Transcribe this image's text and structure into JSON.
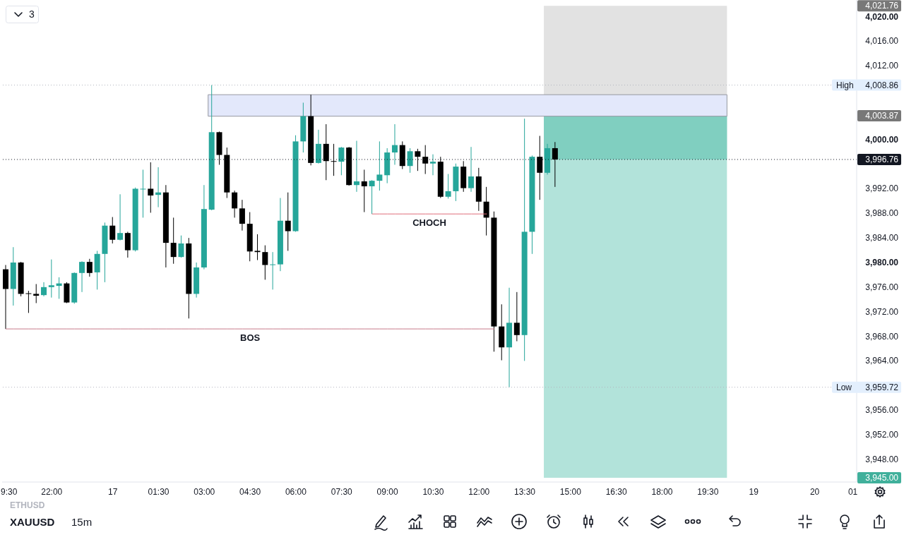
{
  "chart_data": {
    "type": "candlestick",
    "title": "XAUUSD",
    "subtitle": "15m",
    "categories": [
      "9:30",
      null,
      null,
      null,
      null,
      null,
      "22:00",
      null,
      null,
      null,
      null,
      null,
      null,
      null,
      "17",
      null,
      null,
      null,
      null,
      null,
      "01:30",
      null,
      null,
      null,
      null,
      null,
      "03:00",
      null,
      null,
      null,
      null,
      null,
      "04:30",
      null,
      null,
      null,
      null,
      null,
      "06:00",
      null,
      null,
      null,
      null,
      null,
      "07:30",
      null,
      null,
      null,
      null,
      null,
      "09:00",
      null,
      null,
      null,
      null,
      null,
      "10:30",
      null,
      null,
      null,
      null,
      null,
      "12:00",
      null,
      null,
      null,
      null,
      null,
      "13:30",
      null,
      null,
      null,
      null,
      null,
      "15:00",
      null,
      null,
      null,
      null,
      null,
      "16:30",
      null,
      null,
      null,
      null,
      null,
      "18:00",
      null,
      null,
      null,
      null,
      null,
      "19:30",
      null,
      null,
      null,
      null,
      null,
      "19",
      null,
      null,
      null,
      null,
      null,
      null,
      null,
      "20",
      null,
      null,
      null,
      null,
      "01"
    ],
    "ohlc": [
      [
        3978.9,
        3979.6,
        3969.2,
        3975.7
      ],
      [
        3975.7,
        3982.5,
        3973.0,
        3980.0
      ],
      [
        3980.0,
        3980.1,
        3974.5,
        3974.9
      ],
      [
        3975.0,
        3975.4,
        3971.8,
        3974.9
      ],
      [
        3974.9,
        3976.5,
        3973.4,
        3974.6
      ],
      [
        3974.7,
        3976.8,
        3974.5,
        3976.0
      ],
      [
        3976.0,
        3980.5,
        3974.3,
        3976.3
      ],
      [
        3976.2,
        3977.6,
        3974.1,
        3976.6
      ],
      [
        3976.6,
        3976.8,
        3973.4,
        3973.5
      ],
      [
        3973.5,
        3978.4,
        3973.3,
        3978.3
      ],
      [
        3978.3,
        3980.2,
        3975.2,
        3980.1
      ],
      [
        3980.1,
        3980.6,
        3977.7,
        3978.3
      ],
      [
        3978.4,
        3981.9,
        3975.6,
        3981.4
      ],
      [
        3981.4,
        3986.5,
        3976.8,
        3986.0
      ],
      [
        3986.0,
        3987.4,
        3983.1,
        3983.7
      ],
      [
        3983.7,
        3991.1,
        3983.6,
        3984.8
      ],
      [
        3984.8,
        3985.0,
        3980.8,
        3982.0
      ],
      [
        3982.0,
        3992.2,
        3981.8,
        3992.0
      ],
      [
        3991.9,
        3995.1,
        3987.3,
        3992.0
      ],
      [
        3992.0,
        3996.3,
        3988.1,
        3990.9
      ],
      [
        3991.0,
        3995.5,
        3989.0,
        3991.4
      ],
      [
        3991.4,
        3992.6,
        3979.2,
        3983.2
      ],
      [
        3983.2,
        3987.3,
        3979.8,
        3980.9
      ],
      [
        3980.9,
        3984.4,
        3980.8,
        3983.1
      ],
      [
        3983.1,
        3984.0,
        3970.9,
        3974.9
      ],
      [
        3974.9,
        3980.0,
        3974.3,
        3979.2
      ],
      [
        3979.2,
        3992.6,
        3978.9,
        3988.7
      ],
      [
        3988.6,
        4008.86,
        3988.5,
        4001.2
      ],
      [
        4001.2,
        4001.3,
        3995.9,
        3997.5
      ],
      [
        3997.5,
        3998.7,
        3990.5,
        3991.4
      ],
      [
        3991.4,
        3991.7,
        3987.3,
        3988.8
      ],
      [
        3988.8,
        3990.2,
        3985.2,
        3986.3
      ],
      [
        3986.3,
        3988.2,
        3980.2,
        3981.8
      ],
      [
        3981.9,
        3984.6,
        3980.4,
        3981.7
      ],
      [
        3981.7,
        3982.8,
        3977.2,
        3979.6
      ],
      [
        3979.6,
        3981.7,
        3975.6,
        3979.7
      ],
      [
        3979.7,
        3990.5,
        3978.6,
        3986.8
      ],
      [
        3986.8,
        3991.4,
        3981.9,
        3985.1
      ],
      [
        3985.1,
        4000.7,
        3985.0,
        3999.7
      ],
      [
        3999.7,
        4006.0,
        3997.9,
        4003.8
      ],
      [
        4003.8,
        4007.3,
        3995.8,
        3996.2
      ],
      [
        3996.2,
        4001.6,
        3996.1,
        3999.3
      ],
      [
        3999.3,
        4002.5,
        3993.4,
        3996.5
      ],
      [
        3996.5,
        3999.3,
        3994.1,
        3996.4
      ],
      [
        3996.4,
        3998.8,
        3994.2,
        3998.7
      ],
      [
        3998.7,
        3998.8,
        3992.5,
        3992.6
      ],
      [
        3992.6,
        3999.8,
        3991.5,
        3993.2
      ],
      [
        3993.2,
        3995.1,
        3988.2,
        3992.4
      ],
      [
        3992.4,
        3993.4,
        3987.9,
        3993.3
      ],
      [
        3993.3,
        3999.7,
        3991.7,
        3994.3
      ],
      [
        3994.2,
        3998.6,
        3992.9,
        3997.9
      ],
      [
        3997.9,
        4002.5,
        3995.9,
        3999.1
      ],
      [
        3999.1,
        3999.7,
        3995.2,
        3995.7
      ],
      [
        3995.7,
        3998.6,
        3994.6,
        3998.1
      ],
      [
        3998.1,
        3998.5,
        3994.9,
        3997.2
      ],
      [
        3997.2,
        3999.1,
        3994.4,
        3996.1
      ],
      [
        3996.1,
        3997.6,
        3994.2,
        3996.4
      ],
      [
        3996.4,
        3997.2,
        3990.5,
        3990.7
      ],
      [
        3990.7,
        3994.4,
        3990.4,
        3991.6
      ],
      [
        3991.6,
        3996.1,
        3990.0,
        3995.6
      ],
      [
        3995.6,
        3996.5,
        3991.5,
        3992.1
      ],
      [
        3992.1,
        3998.8,
        3991.5,
        3994.0
      ],
      [
        3994.0,
        3995.4,
        3988.4,
        3989.9
      ],
      [
        3989.9,
        3992.3,
        3984.4,
        3987.3
      ],
      [
        3987.3,
        3988.3,
        3965.5,
        3969.6
      ],
      [
        3969.6,
        3973.2,
        3964.1,
        3966.2
      ],
      [
        3966.2,
        3975.9,
        3959.72,
        3970.2
      ],
      [
        3970.2,
        3975.2,
        3967.2,
        3968.2
      ],
      [
        3968.2,
        4003.4,
        3964.0,
        3985.0
      ],
      [
        3985.0,
        3997.4,
        3981.4,
        3997.2
      ],
      [
        3997.2,
        4000.6,
        3990.2,
        3994.6
      ],
      [
        3994.6,
        3999.3,
        3994.3,
        3998.6
      ],
      [
        3998.6,
        3999.6,
        3992.3,
        3996.76
      ],
      null,
      null,
      null,
      null,
      null,
      null,
      null,
      null,
      null,
      null,
      null,
      null,
      null,
      null,
      null,
      null,
      null,
      null,
      null,
      null,
      null,
      null,
      null,
      null,
      null,
      null,
      null,
      null,
      null,
      null,
      null,
      null,
      null,
      null,
      null,
      null,
      null,
      null,
      null
    ],
    "colors": [
      "#000000",
      "#26a69a",
      "#000000",
      "#000000",
      "#000000",
      "#26a69a",
      "#26a69a",
      "#26a69a",
      "#000000",
      "#26a69a",
      "#26a69a",
      "#000000",
      "#26a69a",
      "#26a69a",
      "#000000",
      "#26a69a",
      "#000000",
      "#26a69a",
      "#26a69a",
      "#000000",
      "#26a69a",
      "#000000",
      "#000000",
      "#26a69a",
      "#000000",
      "#26a69a",
      "#26a69a",
      "#26a69a",
      "#000000",
      "#000000",
      "#000000",
      "#000000",
      "#000000",
      "#000000",
      "#000000",
      "#26a69a",
      "#26a69a",
      "#000000",
      "#26a69a",
      "#26a69a",
      "#000000",
      "#26a69a",
      "#000000",
      "#000000",
      "#26a69a",
      "#000000",
      "#26a69a",
      "#000000",
      "#26a69a",
      "#26a69a",
      "#26a69a",
      "#26a69a",
      "#000000",
      "#26a69a",
      "#000000",
      "#000000",
      "#26a69a",
      "#000000",
      "#26a69a",
      "#26a69a",
      "#000000",
      "#26a69a",
      "#000000",
      "#000000",
      "#000000",
      "#000000",
      "#26a69a",
      "#000000",
      "#26a69a",
      "#26a69a",
      "#000000",
      "#26a69a",
      "#000000",
      null,
      null,
      null,
      null,
      null,
      null,
      null,
      null,
      null,
      null,
      null,
      null,
      null,
      null,
      null,
      null,
      null,
      null,
      null,
      null,
      null,
      null,
      null,
      null,
      null,
      null,
      null,
      null,
      null,
      null,
      null,
      null,
      null,
      null,
      null,
      null,
      null,
      null,
      null
    ],
    "series": [
      {
        "type": "line",
        "name": "BOS",
        "color": "#c97b8a",
        "values": [
          3969.2,
          3969.2,
          3969.2,
          3969.2,
          3969.2,
          3969.2,
          3969.2,
          3969.2,
          3969.2,
          3969.2,
          3969.2,
          3969.2,
          3969.2,
          3969.2,
          3969.2,
          3969.2,
          3969.2,
          3969.2,
          3969.2,
          3969.2,
          3969.2,
          3969.2,
          3969.2,
          3969.2,
          3969.2,
          3969.2,
          3969.2,
          3969.2,
          3969.2,
          3969.2,
          3969.2,
          3969.2,
          3969.2,
          3969.2,
          3969.2,
          3969.2,
          3969.2,
          3969.2,
          3969.2,
          3969.2,
          3969.2,
          3969.2,
          3969.2,
          3969.2,
          3969.2,
          3969.2,
          3969.2,
          3969.2,
          3969.2,
          3969.2,
          3969.2,
          3969.2,
          3969.2,
          3969.2,
          3969.2,
          3969.2,
          3969.2,
          3969.2,
          3969.2,
          3969.2,
          3969.2,
          3969.2,
          3969.2,
          3969.2,
          3969.2,
          null,
          null,
          null,
          null,
          null,
          null,
          null,
          null,
          null,
          null,
          null,
          null,
          null,
          null,
          null,
          null,
          null,
          null,
          null,
          null,
          null,
          null,
          null,
          null,
          null,
          null,
          null,
          null,
          null,
          null,
          null,
          null,
          null,
          null,
          null,
          null,
          null,
          null,
          null,
          null,
          null,
          null,
          null,
          null,
          null,
          null,
          null
        ]
      },
      {
        "type": "line",
        "name": "CHOCH",
        "color": "#e06d7a",
        "values": [
          null,
          null,
          null,
          null,
          null,
          null,
          null,
          null,
          null,
          null,
          null,
          null,
          null,
          null,
          null,
          null,
          null,
          null,
          null,
          null,
          null,
          null,
          null,
          null,
          null,
          null,
          null,
          null,
          null,
          null,
          null,
          null,
          null,
          null,
          null,
          null,
          null,
          null,
          null,
          null,
          null,
          null,
          null,
          null,
          null,
          null,
          null,
          null,
          3987.9,
          3987.9,
          3987.9,
          3987.9,
          3987.9,
          3987.9,
          3987.9,
          3987.9,
          3987.9,
          3987.9,
          3987.9,
          3987.9,
          3987.9,
          3987.9,
          3987.9,
          3987.9,
          null,
          null,
          null,
          null,
          null,
          null,
          null,
          null,
          null,
          null,
          null,
          null,
          null,
          null,
          null,
          null,
          null,
          null,
          null,
          null,
          null,
          null,
          null,
          null,
          null,
          null,
          null,
          null,
          null,
          null,
          null,
          null,
          null,
          null,
          null,
          null,
          null,
          null,
          null,
          null,
          null,
          null,
          null,
          null,
          null,
          null,
          null,
          null
        ]
      }
    ],
    "ylim": [
      3944.3,
      4022.7
    ],
    "yticks": [
      {
        "value": 3945,
        "label": "3,945.00"
      },
      {
        "value": 3948,
        "label": "3,948.00"
      },
      {
        "value": 3952,
        "label": "3,952.00"
      },
      {
        "value": 3956,
        "label": "3,956.00"
      },
      {
        "value": 3959.72,
        "label": "3,959.72"
      },
      {
        "value": 3964,
        "label": "3,964.00"
      },
      {
        "value": 3968,
        "label": "3,968.00"
      },
      {
        "value": 3972,
        "label": "3,972.00"
      },
      {
        "value": 3976,
        "label": "3,976.00"
      },
      {
        "value": 3980,
        "label": "3,980.00"
      },
      {
        "value": 3984,
        "label": "3,984.00"
      },
      {
        "value": 3988,
        "label": "3,988.00"
      },
      {
        "value": 3992,
        "label": "3,992.00"
      },
      {
        "value": 3996.76,
        "label": "3,996.76"
      },
      {
        "value": 4000,
        "label": "4,000.00"
      },
      {
        "value": 4003.87,
        "label": "4,003.87"
      },
      {
        "value": 4008.86,
        "label": "4,008.86"
      },
      {
        "value": 4012,
        "label": "4,012.00"
      },
      {
        "value": 4016,
        "label": "4,016.00"
      },
      {
        "value": 4020,
        "label": "4,020.00"
      },
      {
        "value": 4021.76,
        "label": "4,021.76"
      }
    ],
    "ref_lines": [
      {
        "axis": "y",
        "value": 4008.86,
        "label": "High",
        "color": "#b2b5be",
        "line_style": "dotted"
      },
      {
        "axis": "y",
        "value": 3959.72,
        "label": "Low",
        "color": "#b2b5be",
        "line_style": "dotted"
      },
      {
        "axis": "y",
        "value": 3996.76,
        "color": "#131722",
        "line_style": "dotted"
      }
    ],
    "bands": [
      {
        "axis": "y",
        "from": 4003.87,
        "to": 4021.76,
        "color": "#e2e2e2"
      },
      {
        "axis": "y",
        "from": 3945,
        "to": 4003.87,
        "color": "#b2e3da"
      },
      {
        "axis": "y",
        "from": 3996.76,
        "to": 4003.87,
        "color": "#80cfc0"
      },
      {
        "axis": "y",
        "from": 4003.8,
        "to": 4007.3,
        "color": "#e3e8fb"
      }
    ],
    "annotations": [
      "3",
      "ETHUSD"
    ]
  }
}
